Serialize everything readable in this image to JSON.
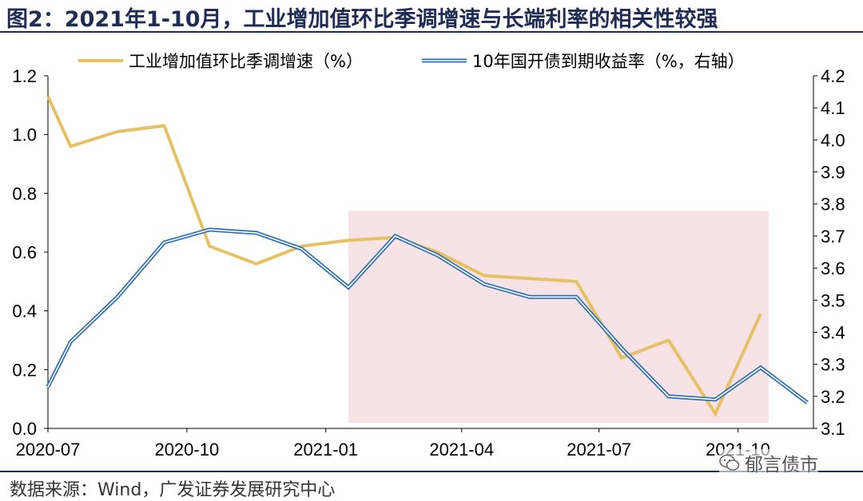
{
  "figure_title": "图2：2021年1-10月，工业增加值环比季调增速与长端利率的相关性较强",
  "source_note": "数据来源：Wind，广发证券发展研究中心",
  "watermark": "郁言债市",
  "colors": {
    "series_industry": "#e6c163",
    "series_bond": "#2e70b8",
    "highlight": "#f7e3e6",
    "axis": "#000000",
    "title": "#1f2d55"
  },
  "chart_data": {
    "type": "line",
    "x": [
      "2020-07",
      "2020-08",
      "2020-09",
      "2020-10",
      "2020-11",
      "2020-12",
      "2021-01",
      "2021-02",
      "2021-03",
      "2021-04",
      "2021-05",
      "2021-06",
      "2021-07",
      "2021-08",
      "2021-09",
      "2021-10",
      "2021-11"
    ],
    "x_ticks": [
      "2020-07",
      "2020-10",
      "2021-01",
      "2021-04",
      "2021-07",
      "2021-10"
    ],
    "y_left": {
      "ticks": [
        "1.2",
        "1.0",
        "0.8",
        "0.6",
        "0.4",
        "0.2",
        "0.0"
      ],
      "lim": [
        0,
        1.2
      ]
    },
    "y_right": {
      "ticks": [
        "4.2",
        "4.1",
        "4.0",
        "3.9",
        "3.8",
        "3.7",
        "3.6",
        "3.5",
        "3.4",
        "3.3",
        "3.2",
        "3.1"
      ],
      "lim": [
        3.1,
        4.2
      ]
    },
    "highlight_range": {
      "from": "2021-01",
      "to": "2021-10",
      "y_max": 0.74
    },
    "legend_position": "top",
    "series": [
      {
        "name": "工业增加值环比季调增速（%）",
        "axis": "left",
        "points": [
          [
            "2020-07-01",
            1.13
          ],
          [
            "2020-07-16",
            0.96
          ],
          [
            "2020-08-16",
            1.01
          ],
          [
            "2020-09-16",
            1.03
          ],
          [
            "2020-10-16",
            0.62
          ],
          [
            "2020-11-16",
            0.56
          ],
          [
            "2020-12-16",
            0.62
          ],
          [
            "2021-01-16",
            0.64
          ],
          [
            "2021-02-16",
            0.65
          ],
          [
            "2021-03-16",
            0.6
          ],
          [
            "2021-04-16",
            0.52
          ],
          [
            "2021-05-16",
            0.51
          ],
          [
            "2021-06-16",
            0.5
          ],
          [
            "2021-07-16",
            0.24
          ],
          [
            "2021-08-16",
            0.3
          ],
          [
            "2021-09-16",
            0.05
          ],
          [
            "2021-10-16",
            0.39
          ]
        ]
      },
      {
        "name": "10年国开债到期收益率（%，右轴）",
        "axis": "right",
        "points": [
          [
            "2020-07-01",
            3.23
          ],
          [
            "2020-07-16",
            3.37
          ],
          [
            "2020-08-16",
            3.51
          ],
          [
            "2020-09-16",
            3.68
          ],
          [
            "2020-10-16",
            3.72
          ],
          [
            "2020-11-16",
            3.71
          ],
          [
            "2020-12-16",
            3.66
          ],
          [
            "2021-01-16",
            3.54
          ],
          [
            "2021-02-16",
            3.7
          ],
          [
            "2021-03-16",
            3.64
          ],
          [
            "2021-04-16",
            3.55
          ],
          [
            "2021-05-16",
            3.51
          ],
          [
            "2021-06-16",
            3.51
          ],
          [
            "2021-07-16",
            3.35
          ],
          [
            "2021-08-16",
            3.2
          ],
          [
            "2021-09-16",
            3.19
          ],
          [
            "2021-10-16",
            3.29
          ],
          [
            "2021-11-16",
            3.18
          ]
        ]
      }
    ]
  }
}
